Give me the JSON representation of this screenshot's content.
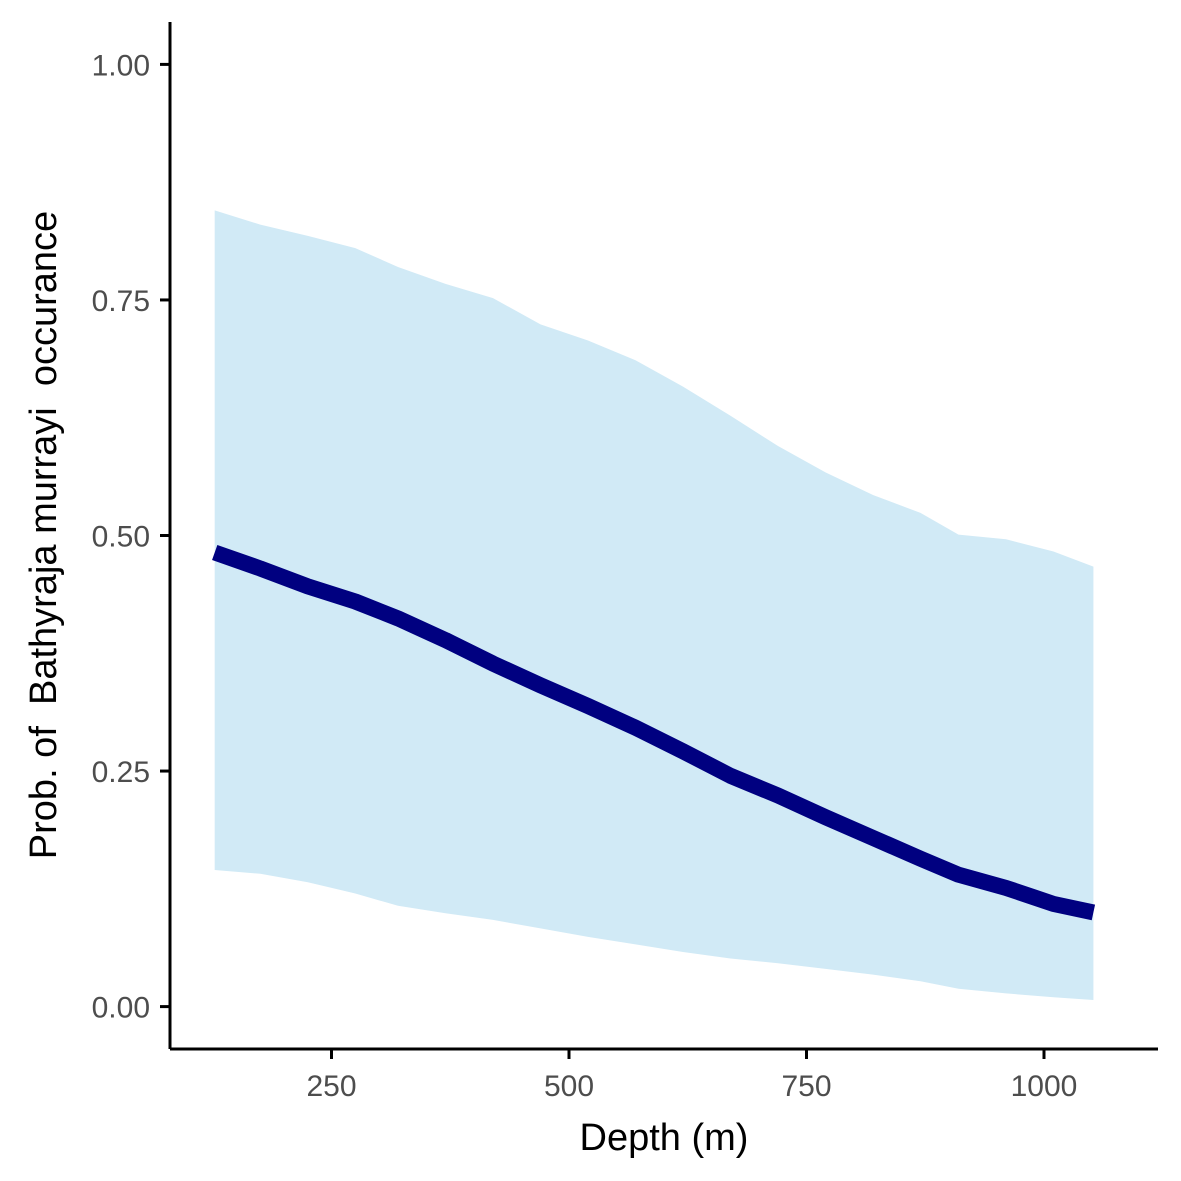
{
  "chart_data": {
    "type": "line",
    "xlabel": "Depth (m)",
    "ylabel": "Prob. of  Bathyraja murrayi  occurance",
    "xlim": [
      80,
      1120
    ],
    "ylim": [
      -0.045,
      1.045
    ],
    "x_ticks": [
      250,
      500,
      750,
      1000
    ],
    "x_tick_labels": [
      "250",
      "500",
      "750",
      "1000"
    ],
    "y_ticks": [
      0,
      0.25,
      0.5,
      0.75,
      1.0
    ],
    "y_tick_labels": [
      "0.00",
      "0.25",
      "0.50",
      "0.75",
      "1.00"
    ],
    "grid": false,
    "legend": "none",
    "colors": {
      "line": "#000080",
      "band": "#d1eaf6"
    },
    "series": [
      {
        "x": [
          127,
          175,
          225,
          275,
          320,
          370,
          420,
          470,
          520,
          570,
          620,
          670,
          720,
          770,
          820,
          870,
          910,
          960,
          1010,
          1052
        ],
        "values": [
          0.482,
          0.465,
          0.446,
          0.43,
          0.412,
          0.389,
          0.364,
          0.341,
          0.319,
          0.296,
          0.271,
          0.245,
          0.224,
          0.201,
          0.179,
          0.157,
          0.14,
          0.126,
          0.109,
          0.1
        ],
        "lower": [
          0.145,
          0.141,
          0.132,
          0.12,
          0.107,
          0.099,
          0.092,
          0.083,
          0.074,
          0.066,
          0.058,
          0.051,
          0.046,
          0.04,
          0.034,
          0.027,
          0.019,
          0.014,
          0.01,
          0.007
        ],
        "upper": [
          0.845,
          0.83,
          0.818,
          0.805,
          0.785,
          0.767,
          0.752,
          0.724,
          0.707,
          0.686,
          0.658,
          0.627,
          0.595,
          0.567,
          0.543,
          0.524,
          0.501,
          0.496,
          0.483,
          0.467
        ]
      }
    ]
  }
}
